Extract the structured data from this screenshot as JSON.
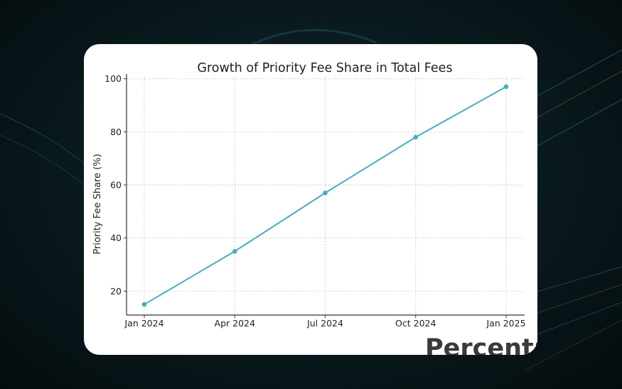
{
  "chart_data": {
    "type": "line",
    "title": "Growth of Priority Fee Share in Total Fees",
    "xlabel": "",
    "ylabel": "Priority Fee Share (%)",
    "categories": [
      "Jan 2024",
      "Apr 2024",
      "Jul 2024",
      "Oct 2024",
      "Jan 2025"
    ],
    "series": [
      {
        "values": [
          15,
          35,
          57,
          78,
          97
        ]
      }
    ],
    "yticks": [
      20,
      40,
      60,
      80,
      100
    ],
    "ylim": [
      11,
      101
    ],
    "grid": true,
    "markers": true,
    "line_color": "#4aacbf"
  },
  "overflow_text": "Percenta",
  "colors": {
    "background": "#0a1c20",
    "card": "#ffffff"
  }
}
